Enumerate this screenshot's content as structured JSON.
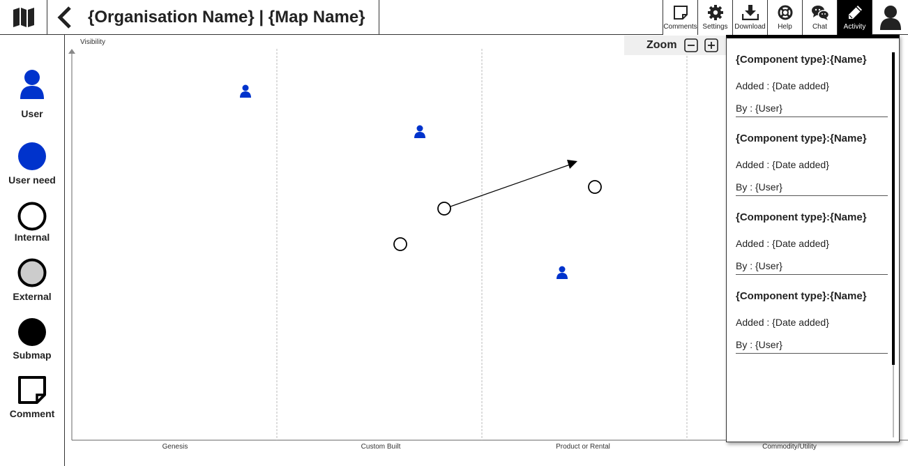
{
  "header": {
    "title": "{Organisation Name} | {Map Name}",
    "logo_icon": "map-icon",
    "back_icon": "chevron-left-icon"
  },
  "toolbar": {
    "buttons": [
      {
        "label": "Comments",
        "icon": "sticky-note-icon"
      },
      {
        "label": "Settings",
        "icon": "gear-icon"
      },
      {
        "label": "Download",
        "icon": "download-icon"
      },
      {
        "label": "Help",
        "icon": "lifebuoy-icon"
      },
      {
        "label": "Chat",
        "icon": "chat-icon"
      },
      {
        "label": "Activity",
        "icon": "pencil-icon",
        "active": true
      }
    ],
    "profile_icon": "user-profile-icon"
  },
  "palette": {
    "items": [
      {
        "label": "User",
        "icon": "user-icon"
      },
      {
        "label": "User need",
        "icon": "filled-blue-circle-icon"
      },
      {
        "label": "Internal",
        "icon": "hollow-circle-icon"
      },
      {
        "label": "External",
        "icon": "grey-circle-icon"
      },
      {
        "label": "Submap",
        "icon": "filled-black-circle-icon"
      },
      {
        "label": "Comment",
        "icon": "sticky-note-icon"
      }
    ]
  },
  "map": {
    "y_axis_label": "Visibility",
    "stages": [
      "Genesis",
      "Custom Built",
      "Product or Rental",
      "Commodity/Utility"
    ],
    "zoom_label": "Zoom"
  },
  "activity": {
    "items": [
      {
        "title": "{Component type}:{Name}",
        "date": "Added : {Date added}",
        "user": "By : {User}"
      },
      {
        "title": "{Component type}:{Name}",
        "date": "Added : {Date added}",
        "user": "By : {User}"
      },
      {
        "title": "{Component type}:{Name}",
        "date": "Added : {Date added}",
        "user": "By : {User}"
      },
      {
        "title": "{Component type}:{Name}",
        "date": "Added : {Date added}",
        "user": "By : {User}"
      }
    ]
  },
  "colors": {
    "user_blue": "#0033cc",
    "active_tool": "#000000",
    "external_grey": "#cccccc",
    "zoom_bg": "#efefef"
  }
}
